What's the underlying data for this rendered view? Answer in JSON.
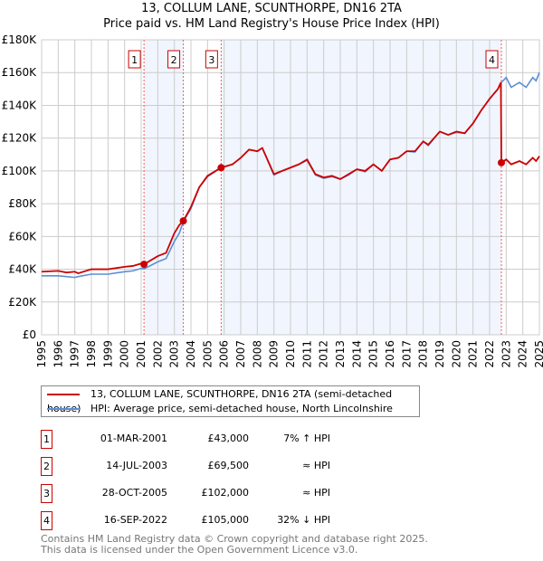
{
  "title_line1": "13, COLLUM LANE, SCUNTHORPE, DN16 2TA",
  "title_line2": "Price paid vs. HM Land Registry's House Price Index (HPI)",
  "chart_data": {
    "type": "line",
    "title": "13, COLLUM LANE, SCUNTHORPE, DN16 2TA — Price paid vs. HM Land Registry's House Price Index (HPI)",
    "xlim": [
      1995,
      2025
    ],
    "ylim": [
      0,
      180000
    ],
    "yticks": [
      0,
      20000,
      40000,
      60000,
      80000,
      100000,
      120000,
      140000,
      160000,
      180000
    ],
    "ytick_labels": [
      "£0",
      "£20K",
      "£40K",
      "£60K",
      "£80K",
      "£100K",
      "£120K",
      "£140K",
      "£160K",
      "£180K"
    ],
    "xtick_labels": [
      "1995",
      "1996",
      "1997",
      "1998",
      "1999",
      "2000",
      "2001",
      "2002",
      "2003",
      "2004",
      "2005",
      "2006",
      "2007",
      "2008",
      "2009",
      "2010",
      "2011",
      "2012",
      "2013",
      "2014",
      "2015",
      "2016",
      "2017",
      "2018",
      "2019",
      "2020",
      "2021",
      "2022",
      "2023",
      "2024",
      "2025"
    ],
    "grid": true,
    "shaded_spans": [
      [
        2001.17,
        2003.54
      ],
      [
        2005.82,
        2022.71
      ]
    ],
    "series": [
      {
        "name": "13, COLLUM LANE, SCUNTHORPE, DN16 2TA (semi-detached house)",
        "color": "#cc0000",
        "points": [
          [
            1995,
            38500
          ],
          [
            1996,
            39000
          ],
          [
            1996.5,
            38000
          ],
          [
            1997,
            38500
          ],
          [
            1997.2,
            37500
          ],
          [
            1998,
            40000
          ],
          [
            1999,
            40000
          ],
          [
            2000,
            41500
          ],
          [
            2000.5,
            42000
          ],
          [
            2001,
            43500
          ],
          [
            2001.17,
            43000
          ],
          [
            2002,
            48000
          ],
          [
            2002.5,
            50000
          ],
          [
            2003,
            62000
          ],
          [
            2003.3,
            67000
          ],
          [
            2003.54,
            69500
          ],
          [
            2004,
            78000
          ],
          [
            2004.5,
            90000
          ],
          [
            2005,
            97000
          ],
          [
            2005.82,
            102000
          ],
          [
            2006.5,
            104000
          ],
          [
            2007,
            108000
          ],
          [
            2007.5,
            113000
          ],
          [
            2008,
            112000
          ],
          [
            2008.3,
            114000
          ],
          [
            2009,
            98000
          ],
          [
            2009.5,
            100000
          ],
          [
            2010,
            102000
          ],
          [
            2010.5,
            104000
          ],
          [
            2011,
            107000
          ],
          [
            2011.5,
            98000
          ],
          [
            2012,
            96000
          ],
          [
            2012.5,
            97000
          ],
          [
            2013,
            95000
          ],
          [
            2013.5,
            98000
          ],
          [
            2014,
            101000
          ],
          [
            2014.5,
            100000
          ],
          [
            2015,
            104000
          ],
          [
            2015.5,
            100000
          ],
          [
            2016,
            107000
          ],
          [
            2016.5,
            108000
          ],
          [
            2017,
            112000
          ],
          [
            2017.5,
            112000
          ],
          [
            2018,
            118000
          ],
          [
            2018.3,
            116000
          ],
          [
            2019,
            124000
          ],
          [
            2019.5,
            122000
          ],
          [
            2020,
            124000
          ],
          [
            2020.5,
            123000
          ],
          [
            2021,
            129000
          ],
          [
            2021.5,
            137000
          ],
          [
            2022,
            144000
          ],
          [
            2022.5,
            150000
          ],
          [
            2022.68,
            154000
          ],
          [
            2022.71,
            105000
          ],
          [
            2023,
            107000
          ],
          [
            2023.3,
            104000
          ],
          [
            2023.8,
            106000
          ],
          [
            2024.2,
            104000
          ],
          [
            2024.6,
            108000
          ],
          [
            2024.8,
            106000
          ],
          [
            2025,
            109000
          ]
        ]
      },
      {
        "name": "HPI: Average price, semi-detached house, North Lincolnshire",
        "color": "#5b8fd6",
        "points": [
          [
            1995,
            36000
          ],
          [
            1996,
            36000
          ],
          [
            1996.5,
            35500
          ],
          [
            1997,
            35000
          ],
          [
            1997.2,
            35500
          ],
          [
            1998,
            37000
          ],
          [
            1999,
            37000
          ],
          [
            2000,
            38500
          ],
          [
            2000.5,
            39000
          ],
          [
            2001,
            40500
          ],
          [
            2001.17,
            40200
          ],
          [
            2002,
            44500
          ],
          [
            2002.5,
            46500
          ],
          [
            2003,
            57000
          ],
          [
            2003.3,
            62000
          ],
          [
            2003.54,
            69000
          ],
          [
            2004,
            77000
          ],
          [
            2004.5,
            90000
          ],
          [
            2005,
            96500
          ],
          [
            2005.82,
            102000
          ],
          [
            2006.5,
            104000
          ],
          [
            2007,
            108000
          ],
          [
            2007.5,
            113000
          ],
          [
            2008,
            112000
          ],
          [
            2008.3,
            114000
          ],
          [
            2009,
            97500
          ],
          [
            2009.5,
            100000
          ],
          [
            2010,
            102000
          ],
          [
            2010.5,
            104000
          ],
          [
            2011,
            106500
          ],
          [
            2011.5,
            97500
          ],
          [
            2012,
            95500
          ],
          [
            2012.5,
            96500
          ],
          [
            2013,
            95000
          ],
          [
            2013.5,
            97500
          ],
          [
            2014,
            101000
          ],
          [
            2014.5,
            99500
          ],
          [
            2015,
            104000
          ],
          [
            2015.5,
            100000
          ],
          [
            2016,
            107000
          ],
          [
            2016.5,
            108000
          ],
          [
            2017,
            112000
          ],
          [
            2017.5,
            111500
          ],
          [
            2018,
            118000
          ],
          [
            2018.3,
            115500
          ],
          [
            2019,
            124000
          ],
          [
            2019.5,
            122000
          ],
          [
            2020,
            123500
          ],
          [
            2020.5,
            123000
          ],
          [
            2021,
            129000
          ],
          [
            2021.5,
            137000
          ],
          [
            2022,
            144000
          ],
          [
            2022.5,
            150000
          ],
          [
            2022.71,
            154000
          ],
          [
            2023,
            157000
          ],
          [
            2023.3,
            151000
          ],
          [
            2023.8,
            154000
          ],
          [
            2024.2,
            151000
          ],
          [
            2024.6,
            157000
          ],
          [
            2024.8,
            155000
          ],
          [
            2025,
            160000
          ]
        ]
      }
    ],
    "sales": [
      {
        "id": "1",
        "x": 2001.17,
        "value": 43000
      },
      {
        "id": "2",
        "x": 2003.54,
        "value": 69500
      },
      {
        "id": "3",
        "x": 2005.82,
        "value": 102000
      },
      {
        "id": "4",
        "x": 2022.71,
        "value": 105000
      }
    ]
  },
  "legend": {
    "property": "13, COLLUM LANE, SCUNTHORPE, DN16 2TA (semi-detached house)",
    "hpi": "HPI: Average price, semi-detached house, North Lincolnshire"
  },
  "transactions": [
    {
      "num": "1",
      "date": "01-MAR-2001",
      "price": "£43,000",
      "relation": "7% ↑ HPI"
    },
    {
      "num": "2",
      "date": "14-JUL-2003",
      "price": "£69,500",
      "relation": "≈ HPI"
    },
    {
      "num": "3",
      "date": "28-OCT-2005",
      "price": "£102,000",
      "relation": "≈ HPI"
    },
    {
      "num": "4",
      "date": "16-SEP-2022",
      "price": "£105,000",
      "relation": "32% ↓ HPI"
    }
  ],
  "footer_line1": "Contains HM Land Registry data © Crown copyright and database right 2025.",
  "footer_line2": "This data is licensed under the Open Government Licence v3.0."
}
